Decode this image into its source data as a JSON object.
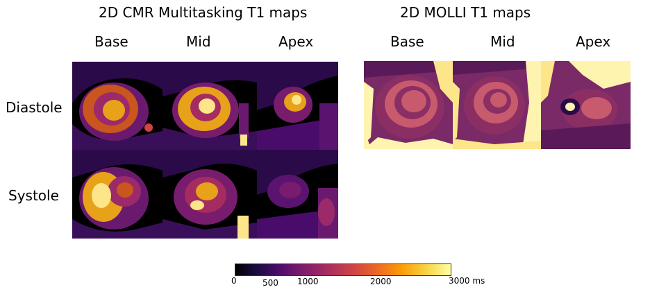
{
  "titles": {
    "left": "2D CMR Multitasking T1 maps",
    "right": "2D MOLLI T1 maps"
  },
  "columns_left": [
    "Base",
    "Mid",
    "Apex"
  ],
  "columns_right": [
    "Base",
    "Mid",
    "Apex"
  ],
  "rows": [
    "Diastole",
    "Systole"
  ],
  "colorbar": {
    "ticks": [
      "0",
      "500",
      "1000",
      "2000",
      "3000 ms"
    ],
    "colors": [
      "#000004",
      "#4a0c6b",
      "#a52c60",
      "#ed6925",
      "#fcffa4"
    ]
  },
  "palette": {
    "background": "#000000",
    "tissue_dark": "#2b0a4a",
    "tissue_mid": "#6a1a6e",
    "myocardium": "#9c2a6a",
    "blood_pool": "#e7a21a",
    "bright": "#fde68a",
    "molli_bg": "#7a2a66",
    "molli_myo": "#8a2e63",
    "molli_blood": "#c85a6e",
    "molli_bright": "#fff3b0"
  }
}
